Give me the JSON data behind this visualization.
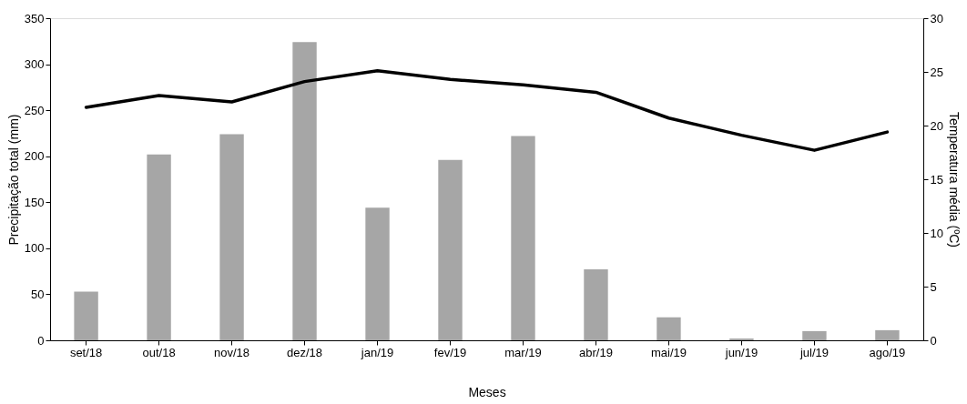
{
  "chart_data": {
    "type": "bar",
    "xlabel": "Meses",
    "ylabel": "Precipitação total (mm)",
    "y2label": "Temperatura média (ºC)",
    "categories": [
      "set/18",
      "out/18",
      "nov/18",
      "dez/18",
      "jan/19",
      "fev/19",
      "mar/19",
      "abr/19",
      "mai/19",
      "jun/19",
      "jul/19",
      "ago/19"
    ],
    "series": [
      {
        "color": "#a6a6a6",
        "values": [
          53,
          202,
          224,
          324,
          144,
          196,
          222,
          77,
          25,
          2,
          10,
          11
        ]
      },
      {
        "type": "line",
        "axis": "y2",
        "color": "#000000",
        "line_style": "solid",
        "values": [
          21.7,
          22.8,
          22.2,
          24.1,
          25.1,
          24.3,
          23.8,
          23.1,
          20.7,
          19.1,
          17.7,
          19.4
        ]
      }
    ],
    "ylim": [
      0,
      350
    ],
    "yticks": [
      0,
      50,
      100,
      150,
      200,
      250,
      300,
      350
    ],
    "y2lim": [
      0,
      30
    ],
    "y2ticks": [
      0,
      5,
      10,
      15,
      20,
      25,
      30
    ],
    "grid": false
  }
}
